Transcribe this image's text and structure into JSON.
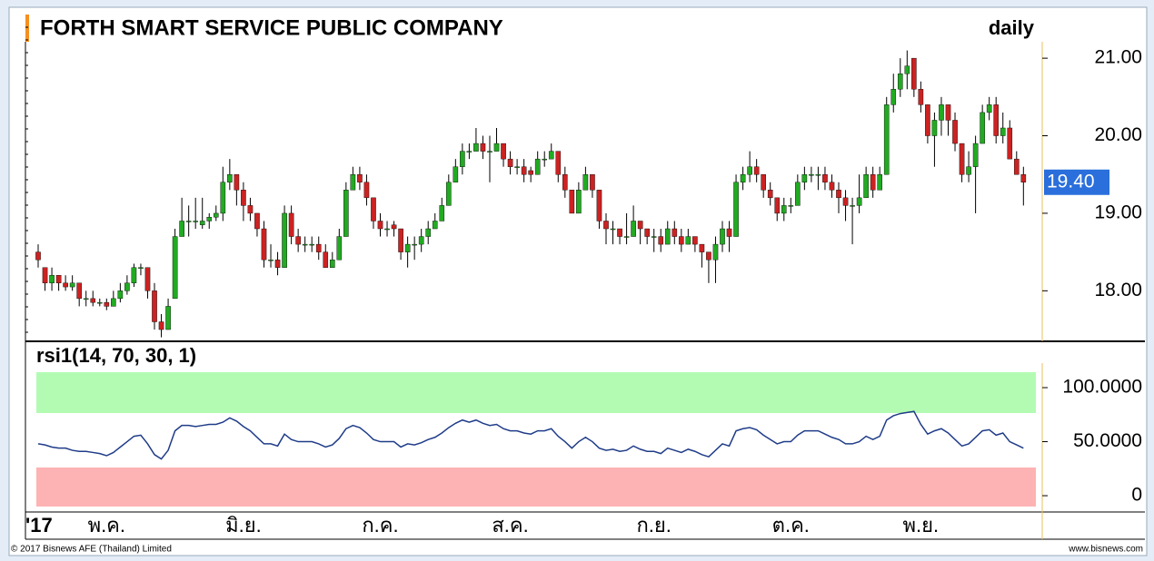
{
  "chart_data": {
    "type": "candlestick",
    "title": "FORTH SMART SERVICE PUBLIC COMPANY",
    "period": "daily",
    "indicator_title": "rsi1(14, 70, 30, 1)",
    "copyright": "© 2017 Bisnews AFE (Thailand) Limited",
    "source": "www.bisnews.com",
    "last_price_label": "19.40",
    "ylim": [
      17.36,
      21.54
    ],
    "yticks": [
      {
        "value": 18,
        "label": "18.00"
      },
      {
        "value": 19,
        "label": "19.00"
      },
      {
        "value": 20,
        "label": "20.00"
      },
      {
        "value": 21,
        "label": "21.00"
      }
    ],
    "y2lim": [
      -13.4,
      139.5
    ],
    "y2ticks": [
      0,
      {
        "value": 50,
        "label": "50.0000"
      },
      {
        "value": 100,
        "label": "100.0000"
      }
    ],
    "up_color": "#22aa22",
    "down_color": "#cc2222",
    "rsi_color": "#1f3c88",
    "categories": [
      "'17",
      null,
      null,
      null,
      null,
      null,
      null,
      null,
      null,
      null,
      "พ.ค.",
      null,
      null,
      null,
      null,
      null,
      null,
      null,
      null,
      null,
      null,
      null,
      null,
      null,
      null,
      null,
      null,
      null,
      null,
      null,
      "มิ.ย.",
      null,
      null,
      null,
      null,
      null,
      null,
      null,
      null,
      null,
      null,
      null,
      null,
      null,
      null,
      null,
      null,
      null,
      null,
      null,
      "ก.ค.",
      null,
      null,
      null,
      null,
      null,
      null,
      null,
      null,
      null,
      null,
      null,
      null,
      null,
      null,
      null,
      null,
      null,
      null,
      "ส.ค.",
      null,
      null,
      null,
      null,
      null,
      null,
      null,
      null,
      null,
      null,
      null,
      null,
      null,
      null,
      null,
      null,
      null,
      null,
      null,
      null,
      "ก.ย.",
      null,
      null,
      null,
      null,
      null,
      null,
      null,
      null,
      null,
      null,
      null,
      null,
      null,
      null,
      null,
      null,
      null,
      null,
      null,
      "ต.ค.",
      null,
      null,
      null,
      null,
      null,
      null,
      null,
      null,
      null,
      null,
      null,
      null,
      null,
      null,
      null,
      null,
      null,
      null,
      "พ.ย.",
      null,
      null,
      null,
      null,
      null,
      null,
      null,
      null,
      null,
      null,
      null,
      null,
      null,
      null,
      null
    ],
    "ohlc": [
      [
        18.5,
        18.6,
        18.3,
        18.4
      ],
      [
        18.3,
        18.3,
        18.0,
        18.1
      ],
      [
        18.1,
        18.3,
        18.0,
        18.2
      ],
      [
        18.2,
        18.2,
        18.0,
        18.1
      ],
      [
        18.1,
        18.2,
        18.0,
        18.05
      ],
      [
        18.05,
        18.2,
        18.0,
        18.1
      ],
      [
        18.1,
        18.1,
        17.8,
        17.9
      ],
      [
        17.9,
        18.0,
        17.8,
        17.9
      ],
      [
        17.9,
        18.0,
        17.8,
        17.85
      ],
      [
        17.85,
        17.9,
        17.8,
        17.85
      ],
      [
        17.85,
        17.9,
        17.75,
        17.8
      ],
      [
        17.8,
        18.0,
        17.8,
        17.9
      ],
      [
        17.9,
        18.1,
        17.85,
        18.0
      ],
      [
        18.0,
        18.2,
        17.95,
        18.1
      ],
      [
        18.1,
        18.35,
        18.05,
        18.3
      ],
      [
        18.3,
        18.35,
        18.2,
        18.3
      ],
      [
        18.3,
        18.3,
        17.9,
        18.0
      ],
      [
        18.0,
        18.1,
        17.5,
        17.6
      ],
      [
        17.6,
        17.7,
        17.4,
        17.5
      ],
      [
        17.5,
        17.9,
        17.5,
        17.8
      ],
      [
        17.9,
        18.8,
        17.9,
        18.7
      ],
      [
        18.7,
        19.2,
        18.7,
        18.9
      ],
      [
        18.9,
        19.1,
        18.7,
        18.9
      ],
      [
        18.9,
        19.2,
        18.8,
        18.9
      ],
      [
        18.85,
        19.2,
        18.8,
        18.9
      ],
      [
        18.9,
        19.0,
        18.8,
        18.95
      ],
      [
        18.95,
        19.1,
        18.9,
        19.0
      ],
      [
        19.0,
        19.6,
        18.9,
        19.4
      ],
      [
        19.4,
        19.7,
        19.3,
        19.5
      ],
      [
        19.5,
        19.5,
        19.1,
        19.3
      ],
      [
        19.3,
        19.4,
        18.9,
        19.1
      ],
      [
        19.1,
        19.2,
        18.9,
        19.0
      ],
      [
        19.0,
        19.0,
        18.7,
        18.8
      ],
      [
        18.8,
        18.9,
        18.3,
        18.4
      ],
      [
        18.4,
        18.6,
        18.3,
        18.4
      ],
      [
        18.4,
        18.5,
        18.2,
        18.3
      ],
      [
        18.3,
        19.1,
        18.3,
        19.0
      ],
      [
        19.0,
        19.1,
        18.6,
        18.7
      ],
      [
        18.7,
        18.8,
        18.5,
        18.6
      ],
      [
        18.6,
        18.7,
        18.5,
        18.6
      ],
      [
        18.6,
        18.7,
        18.5,
        18.6
      ],
      [
        18.6,
        18.7,
        18.4,
        18.5
      ],
      [
        18.5,
        18.6,
        18.3,
        18.3
      ],
      [
        18.3,
        18.5,
        18.3,
        18.4
      ],
      [
        18.4,
        18.8,
        18.4,
        18.7
      ],
      [
        18.7,
        19.4,
        18.7,
        19.3
      ],
      [
        19.3,
        19.6,
        19.3,
        19.5
      ],
      [
        19.5,
        19.6,
        19.3,
        19.4
      ],
      [
        19.4,
        19.5,
        19.1,
        19.2
      ],
      [
        19.2,
        19.2,
        18.8,
        18.9
      ],
      [
        18.9,
        19.0,
        18.7,
        18.8
      ],
      [
        18.8,
        18.9,
        18.7,
        18.8
      ],
      [
        18.85,
        18.9,
        18.7,
        18.8
      ],
      [
        18.8,
        18.8,
        18.4,
        18.5
      ],
      [
        18.5,
        18.7,
        18.3,
        18.6
      ],
      [
        18.6,
        18.7,
        18.4,
        18.6
      ],
      [
        18.6,
        18.8,
        18.5,
        18.7
      ],
      [
        18.7,
        18.9,
        18.6,
        18.8
      ],
      [
        18.8,
        19.0,
        18.8,
        18.9
      ],
      [
        18.9,
        19.2,
        18.9,
        19.1
      ],
      [
        19.1,
        19.5,
        19.1,
        19.4
      ],
      [
        19.4,
        19.7,
        19.4,
        19.6
      ],
      [
        19.6,
        19.9,
        19.5,
        19.8
      ],
      [
        19.8,
        19.9,
        19.7,
        19.8
      ],
      [
        19.8,
        20.1,
        19.8,
        19.9
      ],
      [
        19.9,
        20.0,
        19.7,
        19.8
      ],
      [
        19.8,
        20.0,
        19.4,
        19.8
      ],
      [
        19.8,
        20.1,
        19.8,
        19.9
      ],
      [
        19.9,
        19.9,
        19.6,
        19.7
      ],
      [
        19.7,
        19.8,
        19.5,
        19.6
      ],
      [
        19.6,
        19.7,
        19.5,
        19.6
      ],
      [
        19.6,
        19.7,
        19.4,
        19.5
      ],
      [
        19.55,
        19.6,
        19.4,
        19.5
      ],
      [
        19.5,
        19.8,
        19.5,
        19.7
      ],
      [
        19.7,
        19.8,
        19.6,
        19.7
      ],
      [
        19.7,
        19.9,
        19.7,
        19.8
      ],
      [
        19.8,
        19.8,
        19.4,
        19.5
      ],
      [
        19.5,
        19.6,
        19.2,
        19.3
      ],
      [
        19.3,
        19.3,
        19.0,
        19.0
      ],
      [
        19.0,
        19.4,
        19.0,
        19.3
      ],
      [
        19.3,
        19.6,
        19.3,
        19.5
      ],
      [
        19.5,
        19.5,
        19.2,
        19.3
      ],
      [
        19.3,
        19.3,
        18.8,
        18.9
      ],
      [
        18.9,
        19.0,
        18.6,
        18.8
      ],
      [
        18.8,
        18.9,
        18.6,
        18.8
      ],
      [
        18.8,
        18.8,
        18.6,
        18.7
      ],
      [
        18.7,
        19.0,
        18.6,
        18.7
      ],
      [
        18.7,
        19.1,
        18.7,
        18.9
      ],
      [
        18.9,
        18.9,
        18.6,
        18.8
      ],
      [
        18.8,
        18.8,
        18.6,
        18.7
      ],
      [
        18.7,
        18.8,
        18.5,
        18.7
      ],
      [
        18.7,
        18.8,
        18.5,
        18.6
      ],
      [
        18.6,
        18.9,
        18.6,
        18.8
      ],
      [
        18.8,
        18.9,
        18.6,
        18.7
      ],
      [
        18.7,
        18.8,
        18.5,
        18.6
      ],
      [
        18.6,
        18.8,
        18.6,
        18.7
      ],
      [
        18.7,
        18.7,
        18.5,
        18.6
      ],
      [
        18.6,
        18.6,
        18.3,
        18.5
      ],
      [
        18.5,
        18.5,
        18.1,
        18.4
      ],
      [
        18.4,
        18.7,
        18.1,
        18.6
      ],
      [
        18.6,
        18.9,
        18.5,
        18.8
      ],
      [
        18.8,
        18.9,
        18.5,
        18.7
      ],
      [
        18.7,
        19.5,
        18.7,
        19.4
      ],
      [
        19.4,
        19.6,
        19.3,
        19.5
      ],
      [
        19.5,
        19.8,
        19.4,
        19.6
      ],
      [
        19.6,
        19.7,
        19.4,
        19.5
      ],
      [
        19.5,
        19.5,
        19.2,
        19.3
      ],
      [
        19.3,
        19.4,
        19.1,
        19.2
      ],
      [
        19.2,
        19.2,
        18.9,
        19.0
      ],
      [
        19.0,
        19.2,
        18.9,
        19.1
      ],
      [
        19.1,
        19.2,
        19.0,
        19.1
      ],
      [
        19.1,
        19.5,
        19.1,
        19.4
      ],
      [
        19.4,
        19.6,
        19.3,
        19.5
      ],
      [
        19.5,
        19.6,
        19.4,
        19.5
      ],
      [
        19.5,
        19.6,
        19.3,
        19.5
      ],
      [
        19.5,
        19.6,
        19.3,
        19.4
      ],
      [
        19.4,
        19.5,
        19.2,
        19.3
      ],
      [
        19.3,
        19.4,
        19.0,
        19.2
      ],
      [
        19.2,
        19.3,
        18.9,
        19.1
      ],
      [
        19.1,
        19.2,
        18.6,
        19.1
      ],
      [
        19.1,
        19.5,
        19.0,
        19.2
      ],
      [
        19.2,
        19.6,
        19.2,
        19.5
      ],
      [
        19.5,
        19.6,
        19.2,
        19.3
      ],
      [
        19.3,
        19.6,
        19.3,
        19.5
      ],
      [
        19.5,
        20.5,
        19.5,
        20.4
      ],
      [
        20.4,
        20.8,
        20.3,
        20.6
      ],
      [
        20.6,
        21.0,
        20.5,
        20.8
      ],
      [
        20.8,
        21.1,
        20.6,
        20.9
      ],
      [
        21.0,
        21.0,
        20.5,
        20.6
      ],
      [
        20.6,
        20.7,
        20.3,
        20.4
      ],
      [
        20.4,
        20.4,
        19.9,
        20.0
      ],
      [
        20.0,
        20.3,
        19.6,
        20.2
      ],
      [
        20.2,
        20.5,
        20.0,
        20.4
      ],
      [
        20.4,
        20.4,
        20.0,
        20.2
      ],
      [
        20.2,
        20.3,
        19.8,
        19.9
      ],
      [
        19.9,
        19.9,
        19.4,
        19.5
      ],
      [
        19.5,
        19.8,
        19.4,
        19.6
      ],
      [
        19.6,
        20.0,
        19.0,
        19.9
      ],
      [
        19.9,
        20.4,
        19.9,
        20.3
      ],
      [
        20.3,
        20.5,
        20.2,
        20.4
      ],
      [
        20.4,
        20.5,
        19.9,
        20.0
      ],
      [
        20.0,
        20.3,
        19.9,
        20.1
      ],
      [
        20.1,
        20.2,
        19.7,
        19.7
      ],
      [
        19.7,
        19.8,
        19.5,
        19.5
      ],
      [
        19.5,
        19.6,
        19.1,
        19.4
      ]
    ],
    "rsi": [
      48,
      47,
      45,
      44,
      44,
      42,
      41,
      41,
      40,
      39,
      37,
      40,
      45,
      50,
      55,
      56,
      48,
      38,
      34,
      42,
      60,
      65,
      65,
      64,
      65,
      66,
      66,
      68,
      72,
      69,
      64,
      60,
      54,
      48,
      48,
      46,
      57,
      52,
      50,
      50,
      50,
      48,
      45,
      47,
      53,
      62,
      65,
      63,
      58,
      52,
      50,
      50,
      50,
      45,
      48,
      47,
      49,
      52,
      54,
      58,
      63,
      67,
      70,
      68,
      70,
      67,
      65,
      66,
      62,
      60,
      60,
      58,
      57,
      60,
      60,
      62,
      55,
      50,
      44,
      50,
      54,
      50,
      44,
      42,
      43,
      41,
      42,
      46,
      43,
      41,
      41,
      39,
      44,
      42,
      40,
      43,
      41,
      38,
      36,
      42,
      48,
      46,
      60,
      62,
      63,
      61,
      56,
      52,
      48,
      50,
      50,
      56,
      60,
      60,
      60,
      57,
      54,
      52,
      48,
      48,
      50,
      55,
      52,
      55,
      70,
      74,
      76,
      77,
      78,
      66,
      57,
      60,
      62,
      58,
      52,
      46,
      48,
      54,
      60,
      61,
      56,
      58,
      50,
      47,
      44
    ]
  }
}
